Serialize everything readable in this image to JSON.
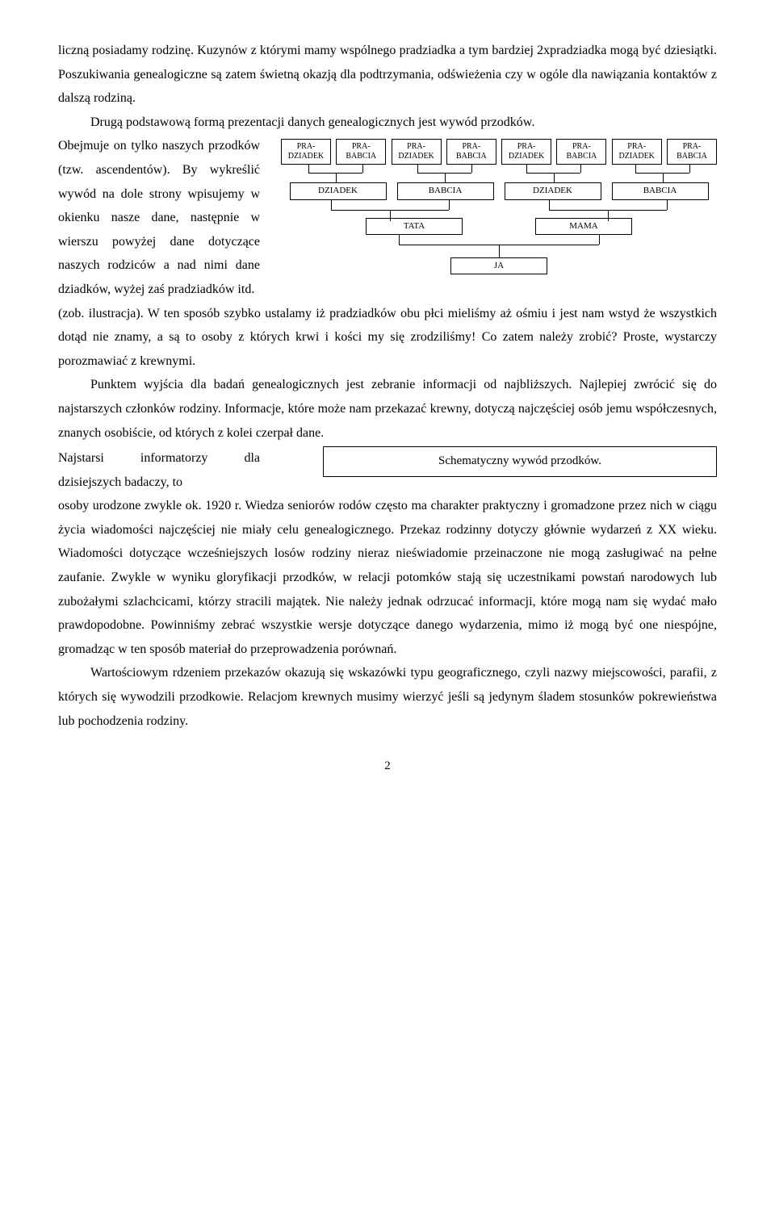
{
  "para1_a": "liczną posiadamy rodzinę. Kuzynów z którymi mamy wspólnego pradziadka a tym bardziej 2xpradziadka mogą być dziesiątki. Poszukiwania genealogiczne są zatem świetną okazją dla podtrzymania, odświeżenia czy w ogóle dla nawiązania kontaktów z dalszą rodziną.",
  "para2_indent": "Drugą podstawową formą prezentacji danych genealogicznych jest wywód przodków.",
  "left_block": "Obejmuje on tylko naszych przodków (tzw. ascendentów). By wykreślić wywód na dole strony wpisujemy w okienku nasze dane, następnie w wierszu powyżej dane dotyczące naszych rodziców a nad nimi dane dziadków, wyżej zaś pradziadków itd.",
  "after_diagram": "(zob. ilustracja). W ten sposób szybko ustalamy iż pradziadków obu płci mieliśmy aż ośmiu i jest nam wstyd że wszystkich dotąd nie znamy, a są to osoby z których krwi i kości my się zrodziliśmy! Co zatem należy zrobić? Proste, wystarczy porozmawiać z krewnymi.",
  "para3": "Punktem wyjścia dla badań genealogicznych jest zebranie informacji od najbliższych. Najlepiej zwrócić się do najstarszych członków rodziny. Informacje, które może nam przekazać krewny, dotyczą najczęściej osób jemu współczesnych, znanych osobiście, od których z kolei czerpał dane.",
  "left_narrow": "Najstarsi informatorzy dla dzisiejszych badaczy, to",
  "caption": "Schematyczny wywód przodków.",
  "para3b": "osoby urodzone zwykle ok. 1920 r. Wiedza seniorów rodów często ma charakter praktyczny i gromadzone przez nich w ciągu życia wiadomości najczęściej nie miały celu genealogicznego. Przekaz rodzinny dotyczy głównie wydarzeń z XX wieku. Wiadomości dotyczące wcześniejszych losów rodziny nieraz nieświadomie przeinaczone nie mogą zasługiwać na pełne zaufanie. Zwykle w wyniku gloryfikacji przodków, w relacji potomków stają się uczestnikami powstań narodowych lub zubożałymi szlachcicami, którzy stracili majątek. Nie należy jednak odrzucać informacji, które mogą nam się wydać mało prawdopodobne. Powinniśmy zebrać wszystkie wersje dotyczące danego wydarzenia, mimo iż mogą być one niespójne, gromadząc w ten sposób materiał do przeprowadzenia porównań.",
  "para4": "Wartościowym rdzeniem przekazów okazują się wskazówki typu geograficznego, czyli nazwy miejscowości, parafii, z których się wywodzili przodkowie. Relacjom krewnych musimy wierzyć jeśli są jedynym śladem stosunków pokrewieństwa lub pochodzenia rodziny.",
  "page_number": "2",
  "tree": {
    "pra": [
      "PRA-\nDZIADEK",
      "PRA-\nBABCIA",
      "PRA-\nDZIADEK",
      "PRA-\nBABCIA",
      "PRA-\nDZIADEK",
      "PRA-\nBABCIA",
      "PRA-\nDZIADEK",
      "PRA-\nBABCIA"
    ],
    "gp": [
      "DZIADEK",
      "BABCIA",
      "DZIADEK",
      "BABCIA"
    ],
    "par": [
      "TATA",
      "MAMA"
    ],
    "ja": "JA"
  }
}
